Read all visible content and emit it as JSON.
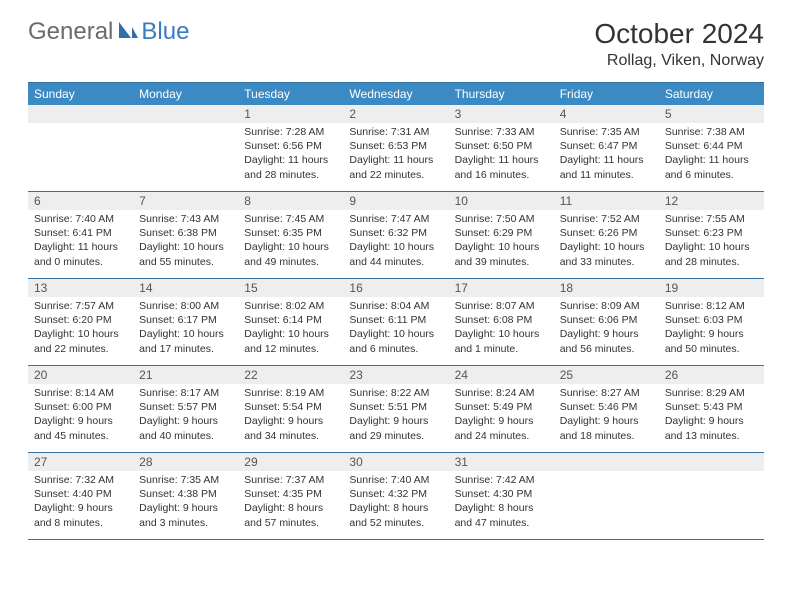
{
  "logo": {
    "part1": "General",
    "part2": "Blue"
  },
  "title": "October 2024",
  "subtitle": "Rollag, Viken, Norway",
  "colors": {
    "header_bar": "#3b8ac4",
    "border": "#34719f",
    "daynum_bg": "#eeeeee",
    "text": "#333333",
    "logo_gray": "#6b6b6b",
    "logo_blue": "#3a7cbf"
  },
  "day_names": [
    "Sunday",
    "Monday",
    "Tuesday",
    "Wednesday",
    "Thursday",
    "Friday",
    "Saturday"
  ],
  "weeks": [
    [
      {
        "n": "",
        "sr": "",
        "ss": "",
        "dl": ""
      },
      {
        "n": "",
        "sr": "",
        "ss": "",
        "dl": ""
      },
      {
        "n": "1",
        "sr": "Sunrise: 7:28 AM",
        "ss": "Sunset: 6:56 PM",
        "dl": "Daylight: 11 hours and 28 minutes."
      },
      {
        "n": "2",
        "sr": "Sunrise: 7:31 AM",
        "ss": "Sunset: 6:53 PM",
        "dl": "Daylight: 11 hours and 22 minutes."
      },
      {
        "n": "3",
        "sr": "Sunrise: 7:33 AM",
        "ss": "Sunset: 6:50 PM",
        "dl": "Daylight: 11 hours and 16 minutes."
      },
      {
        "n": "4",
        "sr": "Sunrise: 7:35 AM",
        "ss": "Sunset: 6:47 PM",
        "dl": "Daylight: 11 hours and 11 minutes."
      },
      {
        "n": "5",
        "sr": "Sunrise: 7:38 AM",
        "ss": "Sunset: 6:44 PM",
        "dl": "Daylight: 11 hours and 6 minutes."
      }
    ],
    [
      {
        "n": "6",
        "sr": "Sunrise: 7:40 AM",
        "ss": "Sunset: 6:41 PM",
        "dl": "Daylight: 11 hours and 0 minutes."
      },
      {
        "n": "7",
        "sr": "Sunrise: 7:43 AM",
        "ss": "Sunset: 6:38 PM",
        "dl": "Daylight: 10 hours and 55 minutes."
      },
      {
        "n": "8",
        "sr": "Sunrise: 7:45 AM",
        "ss": "Sunset: 6:35 PM",
        "dl": "Daylight: 10 hours and 49 minutes."
      },
      {
        "n": "9",
        "sr": "Sunrise: 7:47 AM",
        "ss": "Sunset: 6:32 PM",
        "dl": "Daylight: 10 hours and 44 minutes."
      },
      {
        "n": "10",
        "sr": "Sunrise: 7:50 AM",
        "ss": "Sunset: 6:29 PM",
        "dl": "Daylight: 10 hours and 39 minutes."
      },
      {
        "n": "11",
        "sr": "Sunrise: 7:52 AM",
        "ss": "Sunset: 6:26 PM",
        "dl": "Daylight: 10 hours and 33 minutes."
      },
      {
        "n": "12",
        "sr": "Sunrise: 7:55 AM",
        "ss": "Sunset: 6:23 PM",
        "dl": "Daylight: 10 hours and 28 minutes."
      }
    ],
    [
      {
        "n": "13",
        "sr": "Sunrise: 7:57 AM",
        "ss": "Sunset: 6:20 PM",
        "dl": "Daylight: 10 hours and 22 minutes."
      },
      {
        "n": "14",
        "sr": "Sunrise: 8:00 AM",
        "ss": "Sunset: 6:17 PM",
        "dl": "Daylight: 10 hours and 17 minutes."
      },
      {
        "n": "15",
        "sr": "Sunrise: 8:02 AM",
        "ss": "Sunset: 6:14 PM",
        "dl": "Daylight: 10 hours and 12 minutes."
      },
      {
        "n": "16",
        "sr": "Sunrise: 8:04 AM",
        "ss": "Sunset: 6:11 PM",
        "dl": "Daylight: 10 hours and 6 minutes."
      },
      {
        "n": "17",
        "sr": "Sunrise: 8:07 AM",
        "ss": "Sunset: 6:08 PM",
        "dl": "Daylight: 10 hours and 1 minute."
      },
      {
        "n": "18",
        "sr": "Sunrise: 8:09 AM",
        "ss": "Sunset: 6:06 PM",
        "dl": "Daylight: 9 hours and 56 minutes."
      },
      {
        "n": "19",
        "sr": "Sunrise: 8:12 AM",
        "ss": "Sunset: 6:03 PM",
        "dl": "Daylight: 9 hours and 50 minutes."
      }
    ],
    [
      {
        "n": "20",
        "sr": "Sunrise: 8:14 AM",
        "ss": "Sunset: 6:00 PM",
        "dl": "Daylight: 9 hours and 45 minutes."
      },
      {
        "n": "21",
        "sr": "Sunrise: 8:17 AM",
        "ss": "Sunset: 5:57 PM",
        "dl": "Daylight: 9 hours and 40 minutes."
      },
      {
        "n": "22",
        "sr": "Sunrise: 8:19 AM",
        "ss": "Sunset: 5:54 PM",
        "dl": "Daylight: 9 hours and 34 minutes."
      },
      {
        "n": "23",
        "sr": "Sunrise: 8:22 AM",
        "ss": "Sunset: 5:51 PM",
        "dl": "Daylight: 9 hours and 29 minutes."
      },
      {
        "n": "24",
        "sr": "Sunrise: 8:24 AM",
        "ss": "Sunset: 5:49 PM",
        "dl": "Daylight: 9 hours and 24 minutes."
      },
      {
        "n": "25",
        "sr": "Sunrise: 8:27 AM",
        "ss": "Sunset: 5:46 PM",
        "dl": "Daylight: 9 hours and 18 minutes."
      },
      {
        "n": "26",
        "sr": "Sunrise: 8:29 AM",
        "ss": "Sunset: 5:43 PM",
        "dl": "Daylight: 9 hours and 13 minutes."
      }
    ],
    [
      {
        "n": "27",
        "sr": "Sunrise: 7:32 AM",
        "ss": "Sunset: 4:40 PM",
        "dl": "Daylight: 9 hours and 8 minutes."
      },
      {
        "n": "28",
        "sr": "Sunrise: 7:35 AM",
        "ss": "Sunset: 4:38 PM",
        "dl": "Daylight: 9 hours and 3 minutes."
      },
      {
        "n": "29",
        "sr": "Sunrise: 7:37 AM",
        "ss": "Sunset: 4:35 PM",
        "dl": "Daylight: 8 hours and 57 minutes."
      },
      {
        "n": "30",
        "sr": "Sunrise: 7:40 AM",
        "ss": "Sunset: 4:32 PM",
        "dl": "Daylight: 8 hours and 52 minutes."
      },
      {
        "n": "31",
        "sr": "Sunrise: 7:42 AM",
        "ss": "Sunset: 4:30 PM",
        "dl": "Daylight: 8 hours and 47 minutes."
      },
      {
        "n": "",
        "sr": "",
        "ss": "",
        "dl": ""
      },
      {
        "n": "",
        "sr": "",
        "ss": "",
        "dl": ""
      }
    ]
  ]
}
